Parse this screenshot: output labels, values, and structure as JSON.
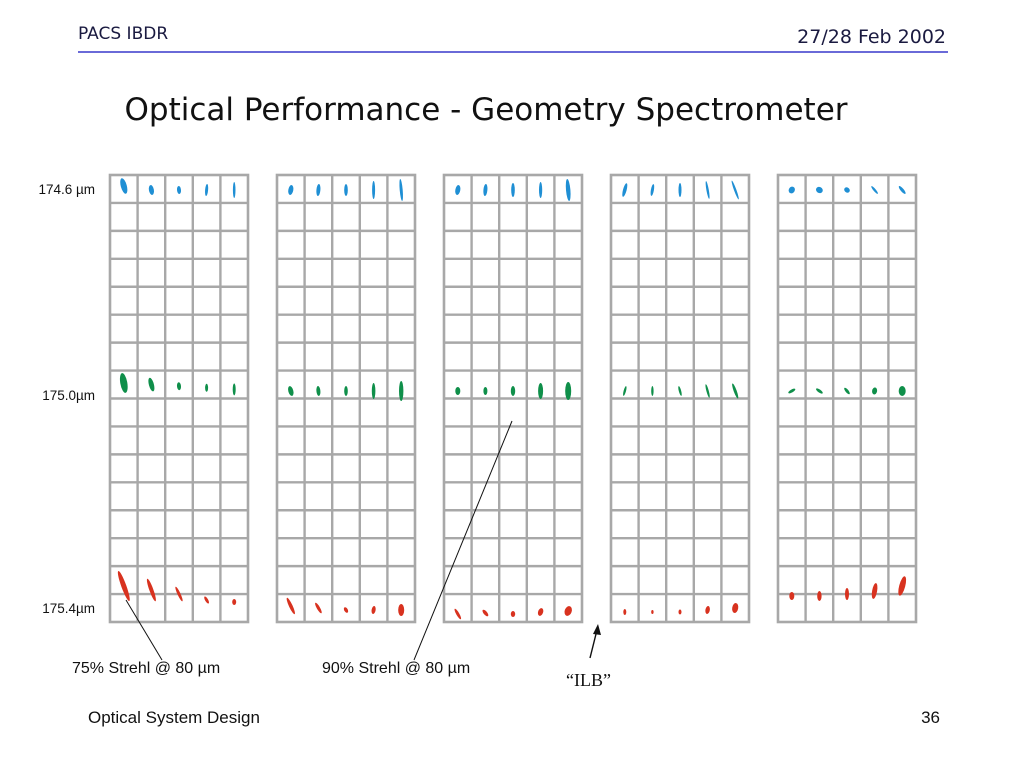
{
  "header": {
    "left": "PACS IBDR",
    "right": "27/28 Feb 2002"
  },
  "title": "Optical Performance - Geometry Spectrometer",
  "wavelength_labels": [
    "174.6 µm",
    "175.0µm",
    "175.4µm"
  ],
  "annotations": {
    "strehl_75": "75% Strehl @ 80 µm",
    "strehl_90": "90% Strehl @ 80 µm",
    "ilb": "“ILB”"
  },
  "footer": {
    "left": "Optical System Design",
    "page": "36"
  },
  "colors": {
    "blue": "#1f8fd4",
    "green": "#0f8f4a",
    "red": "#d8321f",
    "grid": "#a8a8a8",
    "header_rule": "#6a6ad8"
  },
  "grid": {
    "panels": 5,
    "columns_per_panel": 5,
    "rows_per_panel": 16
  }
}
